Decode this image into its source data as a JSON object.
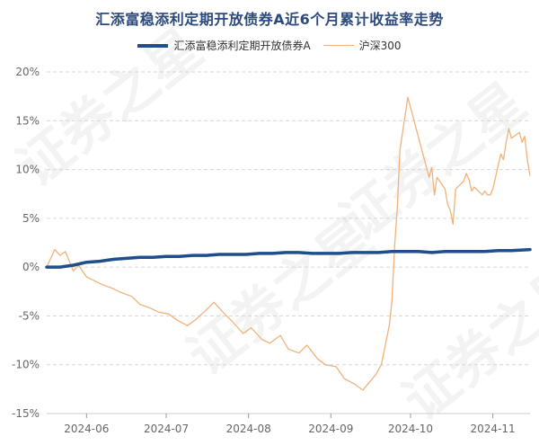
{
  "chart_data": {
    "type": "line",
    "title": "汇添富稳添利定期开放债券A近6个月累计收益率走势",
    "watermark": "证券之星",
    "legend": [
      {
        "name": "汇添富稳添利定期开放债券A",
        "color": "#1f4e8c"
      },
      {
        "name": "沪深300",
        "color": "#f0b27a"
      }
    ],
    "legend_position": "top-center",
    "grid": "horizontal-dashed",
    "y_unit": "%",
    "ylim": [
      -15,
      20
    ],
    "y_ticks": [
      20,
      15,
      10,
      5,
      0,
      -5,
      -10,
      -15
    ],
    "y_tick_labels": [
      "20%",
      "15%",
      "10%",
      "5%",
      "0%",
      "-5%",
      "-10%",
      "-15%"
    ],
    "x_ticks": [
      {
        "label": "2024-06",
        "date": "2024-06-01"
      },
      {
        "label": "2024-07",
        "date": "2024-07-01"
      },
      {
        "label": "2024-08",
        "date": "2024-08-01"
      },
      {
        "label": "2024-09",
        "date": "2024-09-01"
      },
      {
        "label": "2024-10",
        "date": "2024-10-01"
      },
      {
        "label": "2024-11",
        "date": "2024-11-01"
      }
    ],
    "xlim": [
      "2024-05-17",
      "2024-11-15"
    ],
    "series": [
      {
        "name": "汇添富稳添利定期开放债券A",
        "color": "#1f4e8c",
        "x": [
          "2024-05-17",
          "2024-05-22",
          "2024-05-27",
          "2024-06-01",
          "2024-06-06",
          "2024-06-11",
          "2024-06-16",
          "2024-06-21",
          "2024-06-26",
          "2024-07-01",
          "2024-07-06",
          "2024-07-11",
          "2024-07-16",
          "2024-07-21",
          "2024-07-26",
          "2024-07-31",
          "2024-08-05",
          "2024-08-10",
          "2024-08-15",
          "2024-08-20",
          "2024-08-25",
          "2024-08-30",
          "2024-09-04",
          "2024-09-09",
          "2024-09-14",
          "2024-09-19",
          "2024-09-24",
          "2024-09-29",
          "2024-10-04",
          "2024-10-09",
          "2024-10-14",
          "2024-10-19",
          "2024-10-24",
          "2024-10-29",
          "2024-11-03",
          "2024-11-08",
          "2024-11-15"
        ],
        "values": [
          0.0,
          0.0,
          0.2,
          0.5,
          0.6,
          0.8,
          0.9,
          1.0,
          1.0,
          1.1,
          1.1,
          1.2,
          1.2,
          1.3,
          1.3,
          1.3,
          1.4,
          1.4,
          1.5,
          1.5,
          1.4,
          1.4,
          1.4,
          1.5,
          1.5,
          1.5,
          1.6,
          1.6,
          1.6,
          1.5,
          1.6,
          1.6,
          1.6,
          1.6,
          1.7,
          1.7,
          1.8
        ]
      },
      {
        "name": "沪深300",
        "color": "#f0b27a",
        "x": [
          "2024-05-17",
          "2024-05-20",
          "2024-05-22",
          "2024-05-24",
          "2024-05-27",
          "2024-05-29",
          "2024-06-01",
          "2024-06-04",
          "2024-06-07",
          "2024-06-11",
          "2024-06-14",
          "2024-06-18",
          "2024-06-21",
          "2024-06-25",
          "2024-06-28",
          "2024-07-02",
          "2024-07-05",
          "2024-07-09",
          "2024-07-12",
          "2024-07-16",
          "2024-07-19",
          "2024-07-23",
          "2024-07-26",
          "2024-07-30",
          "2024-08-02",
          "2024-08-06",
          "2024-08-09",
          "2024-08-13",
          "2024-08-16",
          "2024-08-20",
          "2024-08-23",
          "2024-08-27",
          "2024-08-30",
          "2024-09-03",
          "2024-09-06",
          "2024-09-10",
          "2024-09-13",
          "2024-09-18",
          "2024-09-20",
          "2024-09-23",
          "2024-09-24",
          "2024-09-25",
          "2024-09-26",
          "2024-09-27",
          "2024-09-30",
          "2024-10-08",
          "2024-10-09",
          "2024-10-10",
          "2024-10-11",
          "2024-10-14",
          "2024-10-15",
          "2024-10-16",
          "2024-10-17",
          "2024-10-18",
          "2024-10-21",
          "2024-10-22",
          "2024-10-23",
          "2024-10-24",
          "2024-10-25",
          "2024-10-28",
          "2024-10-29",
          "2024-10-30",
          "2024-10-31",
          "2024-11-01",
          "2024-11-04",
          "2024-11-05",
          "2024-11-06",
          "2024-11-07",
          "2024-11-08",
          "2024-11-11",
          "2024-11-12",
          "2024-11-13",
          "2024-11-14",
          "2024-11-15"
        ],
        "values": [
          0.0,
          1.8,
          1.2,
          1.6,
          -0.4,
          0.2,
          -1.0,
          -1.4,
          -1.8,
          -2.2,
          -2.6,
          -3.0,
          -3.8,
          -4.2,
          -4.6,
          -4.8,
          -5.4,
          -6.0,
          -5.4,
          -4.4,
          -3.6,
          -4.8,
          -5.6,
          -6.8,
          -6.2,
          -7.4,
          -7.8,
          -7.0,
          -8.4,
          -8.8,
          -8.0,
          -9.4,
          -10.0,
          -10.2,
          -11.4,
          -12.0,
          -12.6,
          -11.0,
          -10.0,
          -6.0,
          -3.5,
          2.0,
          6.0,
          12.0,
          17.4,
          9.2,
          10.2,
          7.4,
          9.2,
          8.0,
          6.4,
          5.8,
          4.4,
          8.0,
          8.8,
          9.6,
          9.0,
          7.8,
          8.2,
          7.4,
          7.8,
          7.4,
          7.4,
          8.0,
          11.6,
          11.0,
          12.8,
          14.2,
          13.2,
          13.8,
          12.8,
          13.4,
          11.0,
          9.4
        ]
      }
    ]
  }
}
